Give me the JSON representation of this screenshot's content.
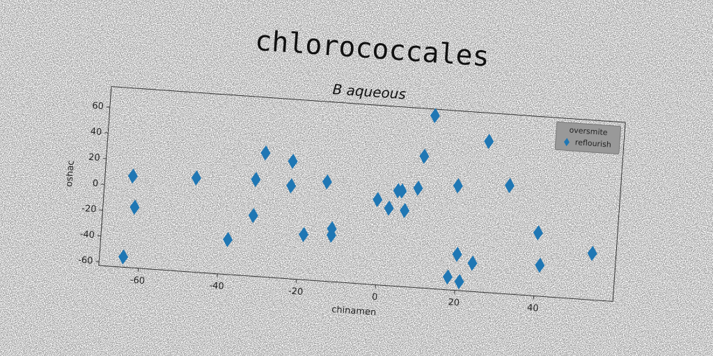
{
  "chart_data": {
    "type": "scatter",
    "title": "chlorococcales",
    "subtitle": "B aqueous",
    "x_label": "chinamen",
    "y_label": "oshac",
    "legend_title": "oversmite",
    "legend_loc": "upper right",
    "grid": true,
    "xlim": [
      -70,
      60
    ],
    "ylim": [
      -63,
      76
    ],
    "xticks": [
      -60,
      -40,
      -20,
      0,
      20,
      40
    ],
    "yticks": [
      -60,
      -40,
      -20,
      0,
      20,
      40,
      60
    ],
    "series": [
      {
        "name": "reflourish",
        "color": "#1f77b4",
        "x": [
          -63,
          -62,
          -64,
          -47,
          -38,
          -32,
          -32,
          -30,
          -23,
          -23,
          -19,
          -14,
          -12,
          -12,
          -1,
          2,
          4,
          5,
          6,
          9,
          10,
          12,
          19,
          20,
          18,
          21,
          24,
          26,
          32,
          40,
          41,
          54
        ],
        "values": [
          8,
          -16,
          -55,
          10,
          -36,
          12,
          -16,
          33,
          28,
          9,
          -28,
          14,
          -22,
          -27,
          3,
          -3,
          11,
          11,
          -4,
          14,
          39,
          71,
          18,
          -35,
          -53,
          -56,
          -41,
          54,
          21,
          -14,
          -39,
          -27
        ]
      }
    ]
  }
}
